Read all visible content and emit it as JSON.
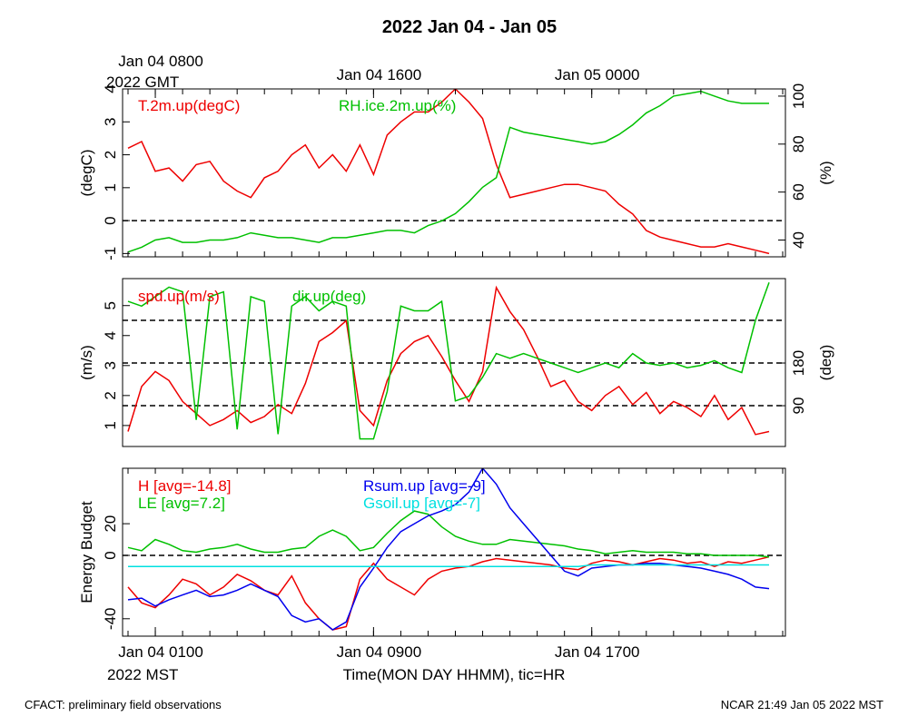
{
  "title": "2022 Jan 04 - Jan 05",
  "footer_left": "CFACT: preliminary field observations",
  "footer_right": "NCAR 21:49 Jan 05 2022 MST",
  "chart_data": [
    {
      "type": "line",
      "xaxis_position": "top",
      "xlim": [
        -1.2,
        23.1
      ],
      "xticks": [
        {
          "value": 0,
          "label": "Jan 04 0800"
        },
        {
          "value": 8,
          "label": "Jan 04 1600"
        },
        {
          "value": 16,
          "label": "Jan 05 0000"
        }
      ],
      "xtick_sublabel": "2022 GMT",
      "minor_xticks": [
        -1,
        0,
        1,
        2,
        3,
        4,
        5,
        6,
        7,
        8,
        9,
        10,
        11,
        12,
        13,
        14,
        15,
        16,
        17,
        18,
        19,
        20,
        21,
        22,
        23
      ],
      "ylabel": "(degC)",
      "y2label": "(%)",
      "ylim": [
        -1.1,
        4.0
      ],
      "yticks": [
        -1,
        0,
        1,
        2,
        3,
        4
      ],
      "y2lim": [
        33,
        103
      ],
      "y2ticks": [
        40,
        60,
        80,
        100
      ],
      "ref_lines": [
        {
          "value": 0,
          "axis": "y"
        }
      ],
      "x": [
        -1,
        -0.5,
        0,
        0.5,
        1,
        1.5,
        2,
        2.5,
        3,
        3.5,
        4,
        4.5,
        5,
        5.5,
        6,
        6.5,
        7,
        7.5,
        8,
        8.5,
        9,
        9.5,
        10,
        10.5,
        11,
        11.5,
        12,
        12.5,
        13,
        13.5,
        14,
        14.5,
        15,
        15.5,
        16,
        16.5,
        17,
        17.5,
        18,
        18.5,
        19,
        19.5,
        20,
        20.5,
        21,
        21.5,
        22,
        22.5
      ],
      "series": [
        {
          "name": "T.2m.up(degC)",
          "color": "#ee0000",
          "axis": "y",
          "values": [
            2.2,
            2.4,
            1.5,
            1.6,
            1.2,
            1.7,
            1.8,
            1.2,
            0.9,
            0.7,
            1.3,
            1.5,
            2.0,
            2.3,
            1.6,
            2.0,
            1.5,
            2.3,
            1.4,
            2.6,
            3.0,
            3.3,
            3.3,
            3.6,
            4.0,
            3.6,
            3.1,
            1.7,
            0.7,
            0.8,
            0.9,
            1.0,
            1.1,
            1.1,
            1.0,
            0.9,
            0.5,
            0.2,
            -0.3,
            -0.5,
            -0.6,
            -0.7,
            -0.8,
            -0.8,
            -0.7,
            -0.8,
            -0.9,
            -1.0
          ]
        },
        {
          "name": "RH.ice.2m.up(%)",
          "color": "#00c000",
          "axis": "y2",
          "values": [
            35,
            37,
            40,
            41,
            39,
            39,
            40,
            40,
            41,
            43,
            42,
            41,
            41,
            40,
            39,
            41,
            41,
            42,
            43,
            44,
            44,
            43,
            46,
            48,
            51,
            56,
            62,
            66,
            87,
            85,
            84,
            83,
            82,
            81,
            80,
            81,
            84,
            88,
            93,
            96,
            100,
            101,
            102,
            100,
            98,
            97,
            97,
            97
          ]
        }
      ]
    },
    {
      "type": "line",
      "xlim": [
        -1.2,
        23.1
      ],
      "ylabel": "(m/s)",
      "y2label": "(deg)",
      "ylim": [
        0.3,
        5.9
      ],
      "yticks": [
        1,
        2,
        3,
        4,
        5
      ],
      "y2lim": [
        4,
        358
      ],
      "y2ticks": [
        90,
        180
      ],
      "ref_lines": [
        {
          "value": 90,
          "axis": "y2"
        },
        {
          "value": 180,
          "axis": "y2"
        },
        {
          "value": 270,
          "axis": "y2"
        }
      ],
      "x": [
        -1,
        -0.5,
        0,
        0.5,
        1,
        1.5,
        2,
        2.5,
        3,
        3.5,
        4,
        4.5,
        5,
        5.5,
        6,
        6.5,
        7,
        7.5,
        8,
        8.5,
        9,
        9.5,
        10,
        10.5,
        11,
        11.5,
        12,
        12.5,
        13,
        13.5,
        14,
        14.5,
        15,
        15.5,
        16,
        16.5,
        17,
        17.5,
        18,
        18.5,
        19,
        19.5,
        20,
        20.5,
        21,
        21.5,
        22,
        22.5
      ],
      "series": [
        {
          "name": "spd.up(m/s)",
          "color": "#ee0000",
          "axis": "y",
          "values": [
            0.8,
            2.3,
            2.8,
            2.5,
            1.8,
            1.4,
            1.0,
            1.2,
            1.5,
            1.1,
            1.3,
            1.7,
            1.4,
            2.4,
            3.8,
            4.1,
            4.5,
            1.5,
            1.0,
            2.5,
            3.4,
            3.8,
            4.0,
            3.3,
            2.5,
            1.8,
            2.8,
            5.6,
            4.8,
            4.2,
            3.3,
            2.3,
            2.5,
            1.8,
            1.5,
            2.0,
            2.3,
            1.7,
            2.1,
            1.4,
            1.8,
            1.6,
            1.3,
            2.0,
            1.2,
            1.6,
            0.7,
            0.8
          ]
        },
        {
          "name": "dir.up(deg)",
          "color": "#00c000",
          "axis": "y2",
          "values": [
            310,
            300,
            320,
            340,
            330,
            60,
            320,
            330,
            40,
            320,
            310,
            30,
            300,
            320,
            290,
            310,
            300,
            20,
            20,
            120,
            300,
            290,
            290,
            310,
            100,
            110,
            150,
            200,
            190,
            200,
            190,
            180,
            170,
            160,
            170,
            180,
            170,
            200,
            180,
            175,
            180,
            170,
            175,
            185,
            170,
            160,
            270,
            350
          ]
        }
      ]
    },
    {
      "type": "line",
      "xaxis_position": "bottom",
      "xlim": [
        -1.2,
        23.1
      ],
      "xticks": [
        {
          "value": 0,
          "label": "Jan 04 0100"
        },
        {
          "value": 8,
          "label": "Jan 04 0900"
        },
        {
          "value": 16,
          "label": "Jan 04 1700"
        }
      ],
      "xtick_sublabel": "2022 MST",
      "xlabel": "Time(MON DAY HHMM), tic=HR",
      "minor_xticks": [
        -1,
        0,
        1,
        2,
        3,
        4,
        5,
        6,
        7,
        8,
        9,
        10,
        11,
        12,
        13,
        14,
        15,
        16,
        17,
        18,
        19,
        20,
        21,
        22,
        23
      ],
      "ylabel": "Energy Budget",
      "ylim": [
        -51,
        55
      ],
      "yticks": [
        -40,
        0,
        20
      ],
      "ref_lines": [
        {
          "value": 0,
          "axis": "y"
        }
      ],
      "x": [
        -1,
        -0.5,
        0,
        0.5,
        1,
        1.5,
        2,
        2.5,
        3,
        3.5,
        4,
        4.5,
        5,
        5.5,
        6,
        6.5,
        7,
        7.5,
        8,
        8.5,
        9,
        9.5,
        10,
        10.5,
        11,
        11.5,
        12,
        12.5,
        13,
        13.5,
        14,
        14.5,
        15,
        15.5,
        16,
        16.5,
        17,
        17.5,
        18,
        18.5,
        19,
        19.5,
        20,
        20.5,
        21,
        21.5,
        22,
        22.5
      ],
      "series": [
        {
          "name": "H [avg=-14.8]",
          "color": "#ee0000",
          "axis": "y",
          "values": [
            -20,
            -30,
            -33,
            -25,
            -15,
            -18,
            -25,
            -20,
            -12,
            -16,
            -22,
            -25,
            -13,
            -30,
            -40,
            -47,
            -45,
            -15,
            -5,
            -15,
            -20,
            -25,
            -15,
            -10,
            -8,
            -7,
            -4,
            -2,
            -3,
            -4,
            -5,
            -6,
            -8,
            -9,
            -5,
            -3,
            -4,
            -6,
            -4,
            -2,
            -3,
            -5,
            -4,
            -7,
            -4,
            -5,
            -3,
            -1
          ]
        },
        {
          "name": "LE [avg=7.2]",
          "color": "#00c000",
          "axis": "y",
          "values": [
            5,
            3,
            10,
            7,
            3,
            2,
            4,
            5,
            7,
            4,
            2,
            2,
            4,
            5,
            12,
            16,
            12,
            3,
            5,
            14,
            22,
            28,
            26,
            18,
            12,
            9,
            7,
            7,
            10,
            9,
            8,
            7,
            6,
            4,
            3,
            1,
            2,
            3,
            2,
            2,
            2,
            1,
            1,
            0,
            0,
            0,
            0,
            -1
          ]
        },
        {
          "name": "Rsum.up [avg=-9]",
          "color": "#0000ee",
          "axis": "y",
          "values": [
            -28,
            -27,
            -32,
            -28,
            -25,
            -22,
            -26,
            -25,
            -22,
            -18,
            -22,
            -26,
            -38,
            -42,
            -40,
            -47,
            -42,
            -20,
            -8,
            5,
            15,
            20,
            25,
            28,
            32,
            40,
            55,
            45,
            30,
            20,
            10,
            0,
            -10,
            -13,
            -8,
            -7,
            -6,
            -6,
            -5,
            -5,
            -6,
            -7,
            -8,
            -10,
            -12,
            -15,
            -20,
            -21
          ]
        },
        {
          "name": "Gsoil.up [avg=-7]",
          "color": "#00e0e0",
          "axis": "y",
          "values": [
            -7,
            -7,
            -7,
            -7,
            -7,
            -7,
            -7,
            -7,
            -7,
            -7,
            -7,
            -7,
            -7,
            -7,
            -7,
            -7,
            -7,
            -7,
            -7,
            -7,
            -7,
            -7,
            -7,
            -7,
            -7,
            -7,
            -7,
            -7,
            -7,
            -7,
            -7,
            -7,
            -7,
            -7,
            -6,
            -6,
            -6,
            -6,
            -6,
            -6,
            -6,
            -6,
            -6,
            -6,
            -6,
            -6,
            -6,
            -6
          ]
        }
      ]
    }
  ]
}
